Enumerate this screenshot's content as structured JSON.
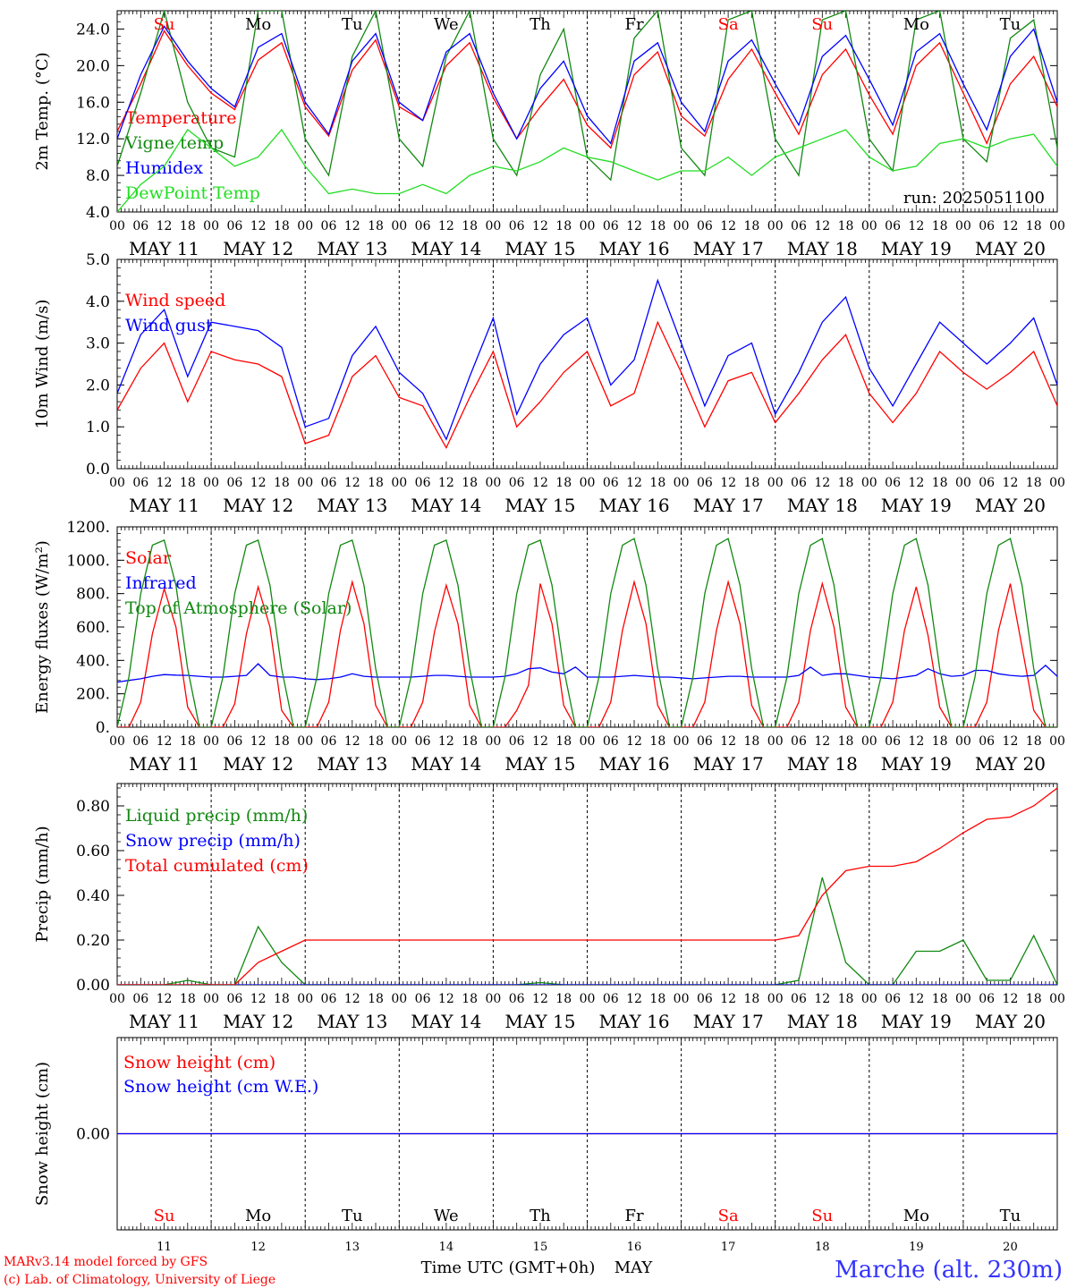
{
  "colors": {
    "red": "#ff0000",
    "green": "#118811",
    "blue": "#0000ff",
    "lightgreen": "#22dd22",
    "axis": "#000000",
    "title": "#3333ff"
  },
  "days": {
    "dates": [
      "MAY 11",
      "MAY 12",
      "MAY 13",
      "MAY 14",
      "MAY 15",
      "MAY 16",
      "MAY 17",
      "MAY 18",
      "MAY 19",
      "MAY 20"
    ],
    "weekdays": [
      "Su",
      "Mo",
      "Tu",
      "We",
      "Th",
      "Fr",
      "Sa",
      "Su",
      "Mo",
      "Tu"
    ],
    "weekend": [
      true,
      false,
      false,
      false,
      false,
      false,
      true,
      true,
      false,
      false
    ],
    "numbers": [
      "11",
      "12",
      "13",
      "14",
      "15",
      "16",
      "17",
      "18",
      "19",
      "20"
    ],
    "hour_ticks": [
      "00",
      "06",
      "12",
      "18"
    ],
    "final_tick": "00"
  },
  "chart_data": [
    {
      "type": "line",
      "ylabel": "2m Temp. (°C)",
      "ylim": [
        4,
        26
      ],
      "yticks": [
        "4.0",
        "8.0",
        "12.0",
        "16.0",
        "20.0",
        "24.0"
      ],
      "run_label": "run: 2025051100",
      "x_hours": [
        0,
        6,
        12,
        18,
        24,
        30,
        36,
        42,
        48,
        54,
        60,
        66,
        72,
        78,
        84,
        90,
        96,
        102,
        108,
        114,
        120,
        126,
        132,
        138,
        144,
        150,
        156,
        162,
        168,
        174,
        180,
        186,
        192,
        198,
        204,
        210,
        216,
        222,
        228,
        234,
        240
      ],
      "series": [
        {
          "name": "Temperature",
          "color": "red",
          "values": [
            12.8,
            18,
            23.8,
            20,
            17,
            15.2,
            20.6,
            22.5,
            15.5,
            12.3,
            19.5,
            22.8,
            15.5,
            14,
            20,
            22.5,
            16.5,
            12,
            15.5,
            18.5,
            13.5,
            11,
            19,
            21.5,
            14.5,
            12.3,
            18.5,
            21.8,
            17,
            12.5,
            19,
            21.8,
            16.8,
            12.5,
            20,
            22.5,
            17,
            11.5,
            18,
            21,
            15.5
          ]
        },
        {
          "name": "Vigne temp",
          "color": "green",
          "values": [
            9,
            17,
            26,
            16,
            11,
            10,
            26,
            26,
            12,
            8,
            21,
            26,
            12,
            9,
            21,
            26,
            12,
            8,
            19,
            24,
            10,
            7.5,
            23,
            26,
            11,
            8,
            25,
            26,
            12,
            8,
            25,
            26,
            12,
            8.5,
            25,
            26,
            12,
            9.5,
            23,
            25,
            11
          ]
        },
        {
          "name": "Humidex",
          "color": "blue",
          "values": [
            12,
            19,
            24.3,
            20.5,
            17.5,
            15.5,
            22,
            23.5,
            16,
            12.5,
            20.5,
            23.5,
            16,
            14,
            21.5,
            23.5,
            17,
            12,
            17.5,
            20.5,
            14.5,
            11.5,
            20.5,
            22.5,
            16,
            12.8,
            20.5,
            22.8,
            18,
            13.5,
            21,
            23.3,
            18.5,
            13.5,
            21.5,
            23.5,
            18,
            13,
            21,
            24,
            16
          ]
        },
        {
          "name": "DewPoint Temp",
          "color": "lightgreen",
          "values": [
            4,
            7,
            9,
            13,
            11,
            9,
            10,
            13,
            9,
            6,
            6.5,
            6,
            6,
            7,
            6,
            8,
            9,
            8.5,
            9.5,
            11,
            10,
            9.5,
            8.5,
            7.5,
            8.5,
            8.5,
            10,
            8,
            10,
            11,
            12,
            13,
            10,
            8.5,
            9,
            11.5,
            12,
            11,
            12,
            12.5,
            9
          ]
        }
      ]
    },
    {
      "type": "line",
      "ylabel": "10m Wind (m/s)",
      "ylim": [
        0,
        5
      ],
      "yticks": [
        "0.0",
        "1.0",
        "2.0",
        "3.0",
        "4.0",
        "5.0"
      ],
      "x_hours": [
        0,
        6,
        12,
        18,
        24,
        30,
        36,
        42,
        48,
        54,
        60,
        66,
        72,
        78,
        84,
        90,
        96,
        102,
        108,
        114,
        120,
        126,
        132,
        138,
        144,
        150,
        156,
        162,
        168,
        174,
        180,
        186,
        192,
        198,
        204,
        210,
        216,
        222,
        228,
        234,
        240
      ],
      "series": [
        {
          "name": "Wind speed",
          "color": "red",
          "values": [
            1.4,
            2.4,
            3,
            1.6,
            2.8,
            2.6,
            2.5,
            2.2,
            0.6,
            0.8,
            2.2,
            2.7,
            1.7,
            1.5,
            0.5,
            1.7,
            2.8,
            1,
            1.6,
            2.3,
            2.8,
            1.5,
            1.8,
            3.5,
            2.3,
            1,
            2.1,
            2.3,
            1.1,
            1.8,
            2.6,
            3.2,
            1.8,
            1.1,
            1.8,
            2.8,
            2.3,
            1.9,
            2.3,
            2.8,
            1.5
          ]
        },
        {
          "name": "Wind gust",
          "color": "blue",
          "values": [
            1.8,
            3.2,
            3.8,
            2.2,
            3.5,
            3.4,
            3.3,
            2.9,
            1,
            1.2,
            2.7,
            3.4,
            2.3,
            1.8,
            0.7,
            2.2,
            3.6,
            1.3,
            2.5,
            3.2,
            3.6,
            2,
            2.6,
            4.5,
            3,
            1.5,
            2.7,
            3,
            1.3,
            2.3,
            3.5,
            4.1,
            2.4,
            1.5,
            2.5,
            3.5,
            3,
            2.5,
            3,
            3.6,
            2
          ]
        }
      ]
    },
    {
      "type": "line",
      "ylabel": "Energy fluxes (W/m²)",
      "ylim": [
        0,
        1200
      ],
      "yticks": [
        "0.",
        "200.",
        "400.",
        "600.",
        "800.",
        "1000.",
        "1200."
      ],
      "x_hours": [
        0,
        3,
        6,
        9,
        12,
        15,
        18,
        21,
        24,
        27,
        30,
        33,
        36,
        39,
        42,
        45,
        48,
        51,
        54,
        57,
        60,
        63,
        66,
        69,
        72,
        75,
        78,
        81,
        84,
        87,
        90,
        93,
        96,
        99,
        102,
        105,
        108,
        111,
        114,
        117,
        120,
        123,
        126,
        129,
        132,
        135,
        138,
        141,
        144,
        147,
        150,
        153,
        156,
        159,
        162,
        165,
        168,
        171,
        174,
        177,
        180,
        183,
        186,
        189,
        192,
        195,
        198,
        201,
        204,
        207,
        210,
        213,
        216,
        219,
        222,
        225,
        228,
        231,
        234,
        237,
        240
      ],
      "series": [
        {
          "name": "Solar",
          "color": "red",
          "values": [
            0,
            0,
            150,
            560,
            830,
            600,
            120,
            0,
            0,
            0,
            140,
            560,
            840,
            600,
            100,
            0,
            0,
            0,
            150,
            580,
            870,
            620,
            130,
            0,
            0,
            0,
            150,
            570,
            850,
            620,
            130,
            0,
            0,
            0,
            100,
            250,
            860,
            620,
            130,
            0,
            0,
            0,
            150,
            580,
            870,
            620,
            130,
            0,
            0,
            0,
            150,
            580,
            870,
            620,
            130,
            0,
            0,
            0,
            150,
            580,
            860,
            600,
            120,
            0,
            0,
            0,
            150,
            580,
            840,
            550,
            120,
            0,
            0,
            0,
            150,
            580,
            860,
            480,
            100,
            0,
            0
          ]
        },
        {
          "name": "Infrared",
          "color": "blue",
          "values": [
            270,
            280,
            290,
            305,
            315,
            312,
            310,
            305,
            300,
            300,
            305,
            310,
            380,
            310,
            300,
            300,
            290,
            285,
            290,
            300,
            320,
            305,
            300,
            300,
            300,
            300,
            305,
            310,
            310,
            305,
            300,
            300,
            300,
            305,
            320,
            350,
            355,
            330,
            320,
            360,
            300,
            300,
            300,
            305,
            310,
            305,
            300,
            300,
            295,
            290,
            295,
            300,
            305,
            305,
            300,
            300,
            300,
            300,
            310,
            360,
            310,
            320,
            320,
            310,
            300,
            295,
            290,
            300,
            310,
            350,
            320,
            305,
            310,
            340,
            340,
            320,
            310,
            305,
            310,
            370,
            305
          ]
        },
        {
          "name": "Top of Atmosphere (Solar)",
          "color": "green",
          "values": [
            0,
            300,
            800,
            1090,
            1120,
            850,
            350,
            0,
            0,
            300,
            800,
            1090,
            1120,
            850,
            350,
            0,
            0,
            300,
            800,
            1090,
            1120,
            850,
            350,
            0,
            0,
            300,
            800,
            1090,
            1120,
            850,
            350,
            0,
            0,
            300,
            800,
            1090,
            1120,
            850,
            350,
            0,
            0,
            300,
            800,
            1090,
            1130,
            850,
            350,
            0,
            0,
            300,
            800,
            1090,
            1130,
            850,
            350,
            0,
            0,
            300,
            800,
            1090,
            1130,
            850,
            350,
            0,
            0,
            300,
            800,
            1090,
            1130,
            850,
            350,
            0,
            0,
            300,
            800,
            1090,
            1130,
            850,
            350,
            0,
            0
          ]
        }
      ]
    },
    {
      "type": "line",
      "ylabel": "Precip (mm/h)",
      "ylim": [
        0,
        0.9
      ],
      "yticks": [
        "0.00",
        "0.20",
        "0.40",
        "0.60",
        "0.80"
      ],
      "x_hours": [
        0,
        6,
        12,
        18,
        24,
        30,
        36,
        42,
        48,
        54,
        60,
        66,
        72,
        78,
        84,
        90,
        96,
        102,
        108,
        114,
        120,
        126,
        132,
        138,
        144,
        150,
        156,
        162,
        168,
        174,
        180,
        186,
        192,
        198,
        204,
        210,
        216,
        222,
        228,
        234,
        240
      ],
      "series": [
        {
          "name": "Liquid precip (mm/h)",
          "color": "green",
          "values": [
            0,
            0,
            0,
            0.02,
            0,
            0,
            0.26,
            0.1,
            0,
            0,
            0,
            0,
            0,
            0,
            0,
            0,
            0,
            0,
            0.01,
            0,
            0,
            0,
            0,
            0,
            0,
            0,
            0,
            0,
            0,
            0.02,
            0.48,
            0.1,
            0,
            0,
            0.15,
            0.15,
            0.2,
            0.02,
            0.02,
            0.22,
            0
          ]
        },
        {
          "name": "Snow precip (mm/h)",
          "color": "blue",
          "values": [
            0,
            0,
            0,
            0,
            0,
            0,
            0,
            0,
            0,
            0,
            0,
            0,
            0,
            0,
            0,
            0,
            0,
            0,
            0,
            0,
            0,
            0,
            0,
            0,
            0,
            0,
            0,
            0,
            0,
            0,
            0,
            0,
            0,
            0,
            0,
            0,
            0,
            0,
            0,
            0,
            0
          ]
        },
        {
          "name": "Total cumulated (cm)",
          "color": "red",
          "values": [
            0,
            0,
            0,
            0,
            0,
            0,
            0.1,
            0.15,
            0.2,
            0.2,
            0.2,
            0.2,
            0.2,
            0.2,
            0.2,
            0.2,
            0.2,
            0.2,
            0.2,
            0.2,
            0.2,
            0.2,
            0.2,
            0.2,
            0.2,
            0.2,
            0.2,
            0.2,
            0.2,
            0.22,
            0.4,
            0.51,
            0.53,
            0.53,
            0.55,
            0.61,
            0.68,
            0.74,
            0.75,
            0.8,
            0.88
          ]
        }
      ]
    },
    {
      "type": "line",
      "ylabel": "Snow height (cm)",
      "ylim": [
        -1,
        1
      ],
      "yticks": [
        "0.00"
      ],
      "xlabel": "Time UTC (GMT+0h)",
      "month_label": "MAY",
      "x_hours": [
        0,
        240
      ],
      "series": [
        {
          "name": "Snow height (cm)",
          "color": "red",
          "values": [
            0,
            0
          ]
        },
        {
          "name": "Snow height (cm W.E.)",
          "color": "blue",
          "values": [
            0,
            0
          ]
        }
      ]
    }
  ],
  "footer": {
    "credit1": "MARv3.14 model forced by GFS",
    "credit2": "(c) Lab. of Climatology, University of Liege",
    "station": "Marche (alt. 230m)"
  }
}
